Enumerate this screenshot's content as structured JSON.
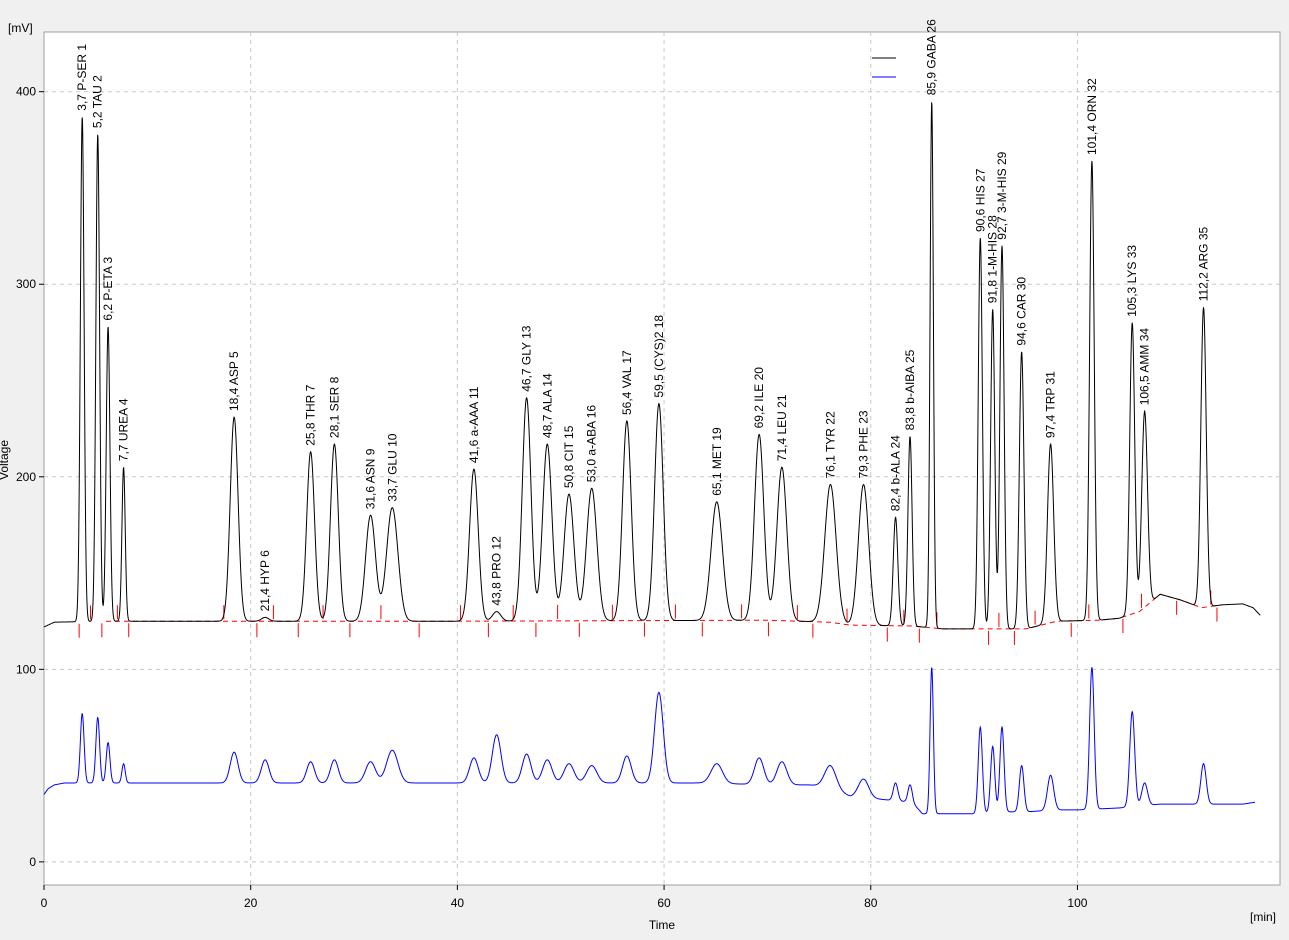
{
  "chart_data": {
    "type": "line",
    "xlabel": "Time",
    "ylabel": "Voltage",
    "x_unit": "[min]",
    "y_unit": "[mV]",
    "xlim": [
      0,
      119.6
    ],
    "ylim": [
      -12,
      431
    ],
    "x_ticks": [
      0,
      20,
      40,
      60,
      80,
      100
    ],
    "y_ticks": [
      0,
      100,
      200,
      300,
      400
    ],
    "grid": true,
    "legend": {
      "placement": "top-right",
      "entries": [
        {
          "color": "#000000",
          "label": ""
        },
        {
          "color": "#0000ff",
          "label": ""
        }
      ]
    },
    "colors": {
      "trace1": "#000000",
      "trace2": "#0000ff",
      "baseline": "#ff0000",
      "background": "#f0f0f0",
      "plot_background": "#ffffff",
      "grid": "#c8c8c8"
    },
    "trace1": {
      "baseline": [
        [
          0,
          122
        ],
        [
          1,
          124.5
        ],
        [
          6,
          125
        ],
        [
          40,
          125
        ],
        [
          52,
          125.2
        ],
        [
          70,
          125.5
        ],
        [
          76,
          124.5
        ],
        [
          78,
          123
        ],
        [
          84,
          122.5
        ],
        [
          87,
          121
        ],
        [
          90,
          121
        ],
        [
          95,
          121
        ],
        [
          98,
          125
        ],
        [
          102,
          125.5
        ],
        [
          104,
          126.5
        ],
        [
          106,
          130
        ],
        [
          108,
          139
        ],
        [
          110,
          136
        ],
        [
          112,
          132
        ],
        [
          114,
          133.5
        ],
        [
          116,
          134
        ],
        [
          117,
          132
        ],
        [
          117.7,
          128
        ]
      ],
      "peaks": [
        {
          "n": 1,
          "t": 3.7,
          "h": 387,
          "w": 0.18,
          "label": "3,7 P-SER"
        },
        {
          "n": 2,
          "t": 5.2,
          "h": 378,
          "w": 0.18,
          "label": "5,2 TAU"
        },
        {
          "n": 3,
          "t": 6.2,
          "h": 278,
          "w": 0.18,
          "label": "6,2 P-ETA"
        },
        {
          "n": 4,
          "t": 7.7,
          "h": 205,
          "w": 0.16,
          "label": "7,7 UREA"
        },
        {
          "n": 5,
          "t": 18.4,
          "h": 231,
          "w": 0.38,
          "label": "18,4 ASP"
        },
        {
          "n": 6,
          "t": 21.4,
          "h": 127,
          "w": 0.35,
          "label": "21,4 HYP"
        },
        {
          "n": 7,
          "t": 25.8,
          "h": 213,
          "w": 0.38,
          "label": "25,8 THR"
        },
        {
          "n": 8,
          "t": 28.1,
          "h": 217,
          "w": 0.38,
          "label": "28,1 SER"
        },
        {
          "n": 9,
          "t": 31.6,
          "h": 180,
          "w": 0.48,
          "label": "31,6 ASN"
        },
        {
          "n": 10,
          "t": 33.7,
          "h": 184,
          "w": 0.55,
          "label": "33,7 GLU"
        },
        {
          "n": 11,
          "t": 41.6,
          "h": 204,
          "w": 0.42,
          "label": "41,6 a-AAA"
        },
        {
          "n": 12,
          "t": 43.8,
          "h": 130,
          "w": 0.4,
          "label": "43,8 PRO"
        },
        {
          "n": 13,
          "t": 46.7,
          "h": 241,
          "w": 0.42,
          "label": "46,7 GLY"
        },
        {
          "n": 14,
          "t": 48.7,
          "h": 217,
          "w": 0.45,
          "label": "48,7 ALA"
        },
        {
          "n": 15,
          "t": 50.8,
          "h": 191,
          "w": 0.48,
          "label": "50,8 CIT"
        },
        {
          "n": 16,
          "t": 53.0,
          "h": 194,
          "w": 0.5,
          "label": "53,0 a-ABA"
        },
        {
          "n": 17,
          "t": 56.4,
          "h": 229,
          "w": 0.42,
          "label": "56,4 VAL"
        },
        {
          "n": 18,
          "t": 59.5,
          "h": 238,
          "w": 0.42,
          "label": "59,5 (CYS)2"
        },
        {
          "n": 19,
          "t": 65.1,
          "h": 187,
          "w": 0.55,
          "label": "65,1 MET"
        },
        {
          "n": 20,
          "t": 69.2,
          "h": 222,
          "w": 0.45,
          "label": "69,2 ILE"
        },
        {
          "n": 21,
          "t": 71.4,
          "h": 205,
          "w": 0.48,
          "label": "71,4 LEU"
        },
        {
          "n": 22,
          "t": 76.1,
          "h": 196,
          "w": 0.55,
          "label": "76,1 TYR"
        },
        {
          "n": 23,
          "t": 79.3,
          "h": 196,
          "w": 0.5,
          "label": "79,3 PHE"
        },
        {
          "n": 24,
          "t": 82.4,
          "h": 179,
          "w": 0.22,
          "label": "82,4 b-ALA"
        },
        {
          "n": 25,
          "t": 83.8,
          "h": 221,
          "w": 0.2,
          "label": "83,8 b-AIBA"
        },
        {
          "n": 26,
          "t": 85.9,
          "h": 395,
          "w": 0.16,
          "label": "85,9 GABA"
        },
        {
          "n": 27,
          "t": 90.6,
          "h": 324,
          "w": 0.2,
          "label": "90,6 HIS"
        },
        {
          "n": 28,
          "t": 91.8,
          "h": 287,
          "w": 0.2,
          "label": "91,8 1-M-HIS"
        },
        {
          "n": 29,
          "t": 92.7,
          "h": 320,
          "w": 0.2,
          "label": "92,7 3-M-HIS"
        },
        {
          "n": 30,
          "t": 94.6,
          "h": 265,
          "w": 0.22,
          "label": "94,6 CAR"
        },
        {
          "n": 31,
          "t": 97.4,
          "h": 217,
          "w": 0.3,
          "label": "97,4 TRP"
        },
        {
          "n": 32,
          "t": 101.4,
          "h": 364,
          "w": 0.22,
          "label": "101,4 ORN"
        },
        {
          "n": 33,
          "t": 105.3,
          "h": 280,
          "w": 0.24,
          "label": "105,3 LYS"
        },
        {
          "n": 34,
          "t": 106.5,
          "h": 234,
          "w": 0.28,
          "label": "106,5 AMM"
        },
        {
          "n": 35,
          "t": 112.2,
          "h": 288,
          "w": 0.26,
          "label": "112,2 ARG"
        }
      ]
    },
    "trace2": {
      "baseline": [
        [
          0,
          35
        ],
        [
          0.4,
          38
        ],
        [
          1,
          40
        ],
        [
          2,
          41
        ],
        [
          40,
          41
        ],
        [
          51,
          41
        ],
        [
          57,
          41
        ],
        [
          61,
          41
        ],
        [
          64,
          41
        ],
        [
          70,
          40
        ],
        [
          74,
          40
        ],
        [
          76,
          39
        ],
        [
          78,
          34
        ],
        [
          80,
          33
        ],
        [
          84,
          31
        ],
        [
          85,
          25
        ],
        [
          87,
          25
        ],
        [
          90,
          25
        ],
        [
          93,
          26
        ],
        [
          95,
          26
        ],
        [
          98,
          27
        ],
        [
          100,
          27
        ],
        [
          104,
          28
        ],
        [
          106,
          29
        ],
        [
          108,
          30
        ],
        [
          110,
          30
        ],
        [
          112,
          30
        ],
        [
          116,
          30
        ],
        [
          117.2,
          31
        ]
      ],
      "peaks": [
        {
          "t": 3.7,
          "h": 77,
          "w": 0.18
        },
        {
          "t": 5.2,
          "h": 75,
          "w": 0.18
        },
        {
          "t": 6.2,
          "h": 62,
          "w": 0.18
        },
        {
          "t": 7.7,
          "h": 51,
          "w": 0.16
        },
        {
          "t": 18.4,
          "h": 57,
          "w": 0.38
        },
        {
          "t": 21.4,
          "h": 53,
          "w": 0.38
        },
        {
          "t": 25.8,
          "h": 52,
          "w": 0.38
        },
        {
          "t": 28.1,
          "h": 53,
          "w": 0.38
        },
        {
          "t": 31.6,
          "h": 52,
          "w": 0.48
        },
        {
          "t": 33.7,
          "h": 58,
          "w": 0.55
        },
        {
          "t": 41.6,
          "h": 54,
          "w": 0.42
        },
        {
          "t": 43.8,
          "h": 66,
          "w": 0.42
        },
        {
          "t": 46.7,
          "h": 56,
          "w": 0.42
        },
        {
          "t": 48.7,
          "h": 53,
          "w": 0.45
        },
        {
          "t": 50.8,
          "h": 51,
          "w": 0.48
        },
        {
          "t": 53.0,
          "h": 50,
          "w": 0.5
        },
        {
          "t": 56.4,
          "h": 55,
          "w": 0.42
        },
        {
          "t": 59.5,
          "h": 88,
          "w": 0.42
        },
        {
          "t": 65.1,
          "h": 51,
          "w": 0.55
        },
        {
          "t": 69.2,
          "h": 54,
          "w": 0.45
        },
        {
          "t": 71.4,
          "h": 52,
          "w": 0.48
        },
        {
          "t": 76.1,
          "h": 50,
          "w": 0.55
        },
        {
          "t": 79.3,
          "h": 43,
          "w": 0.5
        },
        {
          "t": 82.4,
          "h": 41,
          "w": 0.22
        },
        {
          "t": 83.8,
          "h": 40,
          "w": 0.2
        },
        {
          "t": 85.9,
          "h": 101,
          "w": 0.16
        },
        {
          "t": 90.6,
          "h": 70,
          "w": 0.2
        },
        {
          "t": 91.8,
          "h": 60,
          "w": 0.2
        },
        {
          "t": 92.7,
          "h": 70,
          "w": 0.2
        },
        {
          "t": 94.6,
          "h": 50,
          "w": 0.22
        },
        {
          "t": 97.4,
          "h": 45,
          "w": 0.3
        },
        {
          "t": 101.4,
          "h": 101,
          "w": 0.22
        },
        {
          "t": 105.3,
          "h": 78,
          "w": 0.24
        },
        {
          "t": 106.5,
          "h": 41,
          "w": 0.28
        },
        {
          "t": 112.2,
          "h": 51,
          "w": 0.26
        }
      ]
    },
    "integration_marks": [
      3.4,
      4.5,
      5.6,
      7.1,
      8.2,
      17.4,
      20.6,
      22.2,
      24.6,
      27.0,
      29.6,
      32.6,
      36.3,
      40.3,
      43.0,
      45.4,
      47.6,
      49.7,
      51.8,
      55.0,
      58.1,
      61.1,
      63.7,
      67.5,
      70.1,
      72.9,
      74.4,
      77.7,
      81.6,
      83.2,
      84.7,
      86.4,
      91.4,
      92.4,
      93.9,
      95.9,
      99.4,
      101.1,
      104.4,
      106.2,
      109.6,
      112.9,
      113.5
    ]
  }
}
